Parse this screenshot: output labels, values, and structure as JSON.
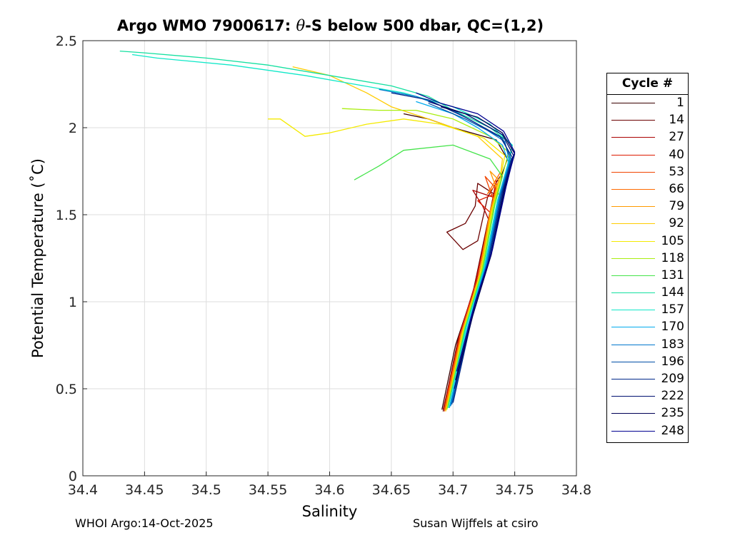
{
  "title": {
    "prefix": "Argo WMO 7900617: ",
    "theta": "θ",
    "suffix": "-S below 500 dbar,  QC=(1,2)"
  },
  "chart_data": {
    "type": "line",
    "title": "Argo WMO 7900617: θ-S below 500 dbar,  QC=(1,2)",
    "xlabel": "Salinity",
    "ylabel": "Potential Temperature (˚C)",
    "xlim": [
      34.4,
      34.8
    ],
    "ylim": [
      0,
      2.5
    ],
    "xticks": [
      "34.4",
      "34.45",
      "34.5",
      "34.55",
      "34.6",
      "34.65",
      "34.7",
      "34.75",
      "34.8"
    ],
    "yticks": [
      "0",
      "0.5",
      "1",
      "1.5",
      "2",
      "2.5"
    ],
    "xtick_values": [
      34.4,
      34.45,
      34.5,
      34.55,
      34.6,
      34.65,
      34.7,
      34.75,
      34.8
    ],
    "ytick_values": [
      0,
      0.5,
      1,
      1.5,
      2,
      2.5
    ],
    "grid": true,
    "legend_position": "right",
    "legend_title": "Cycle #",
    "series": [
      {
        "name": "1",
        "color": "#3a0000",
        "points": [
          [
            34.691,
            0.38
          ],
          [
            34.702,
            0.75
          ],
          [
            34.716,
            1.05
          ],
          [
            34.727,
            1.4
          ],
          [
            34.738,
            1.7
          ],
          [
            34.744,
            1.82
          ],
          [
            34.735,
            1.93
          ],
          [
            34.7,
            2.0
          ],
          [
            34.68,
            2.05
          ],
          [
            34.66,
            2.08
          ]
        ]
      },
      {
        "name": "14",
        "color": "#6a0000",
        "points": [
          [
            34.692,
            0.37
          ],
          [
            34.704,
            0.78
          ],
          [
            34.717,
            1.08
          ],
          [
            34.727,
            1.42
          ],
          [
            34.733,
            1.62
          ],
          [
            34.72,
            1.68
          ],
          [
            34.718,
            1.55
          ],
          [
            34.71,
            1.45
          ],
          [
            34.695,
            1.4
          ],
          [
            34.708,
            1.3
          ],
          [
            34.72,
            1.35
          ],
          [
            34.728,
            1.6
          ],
          [
            34.738,
            1.72
          ]
        ]
      },
      {
        "name": "27",
        "color": "#aa0000",
        "points": [
          [
            34.692,
            0.38
          ],
          [
            34.705,
            0.78
          ],
          [
            34.718,
            1.08
          ],
          [
            34.728,
            1.45
          ],
          [
            34.733,
            1.6
          ],
          [
            34.716,
            1.64
          ],
          [
            34.724,
            1.55
          ],
          [
            34.729,
            1.47
          ],
          [
            34.734,
            1.66
          ]
        ]
      },
      {
        "name": "40",
        "color": "#dd1a00",
        "points": [
          [
            34.693,
            0.38
          ],
          [
            34.705,
            0.8
          ],
          [
            34.718,
            1.1
          ],
          [
            34.728,
            1.42
          ],
          [
            34.734,
            1.62
          ],
          [
            34.72,
            1.58
          ],
          [
            34.732,
            1.5
          ],
          [
            34.735,
            1.7
          ]
        ]
      },
      {
        "name": "53",
        "color": "#f04400",
        "points": [
          [
            34.693,
            0.37
          ],
          [
            34.706,
            0.8
          ],
          [
            34.72,
            1.12
          ],
          [
            34.73,
            1.48
          ],
          [
            34.735,
            1.65
          ],
          [
            34.726,
            1.72
          ],
          [
            34.734,
            1.56
          ]
        ]
      },
      {
        "name": "66",
        "color": "#ff6a00",
        "points": [
          [
            34.693,
            0.38
          ],
          [
            34.706,
            0.8
          ],
          [
            34.72,
            1.12
          ],
          [
            34.73,
            1.5
          ],
          [
            34.736,
            1.68
          ],
          [
            34.728,
            1.62
          ],
          [
            34.738,
            1.74
          ]
        ]
      },
      {
        "name": "79",
        "color": "#ff9a00",
        "points": [
          [
            34.694,
            0.38
          ],
          [
            34.707,
            0.82
          ],
          [
            34.721,
            1.15
          ],
          [
            34.73,
            1.52
          ],
          [
            34.737,
            1.7
          ],
          [
            34.73,
            1.75
          ],
          [
            34.738,
            1.6
          ]
        ]
      },
      {
        "name": "92",
        "color": "#ffcc00",
        "points": [
          [
            34.694,
            0.37
          ],
          [
            34.708,
            0.82
          ],
          [
            34.722,
            1.15
          ],
          [
            34.731,
            1.52
          ],
          [
            34.738,
            1.7
          ],
          [
            34.74,
            1.82
          ],
          [
            34.72,
            1.95
          ],
          [
            34.68,
            2.05
          ],
          [
            34.65,
            2.12
          ],
          [
            34.63,
            2.2
          ],
          [
            34.6,
            2.3
          ],
          [
            34.57,
            2.35
          ]
        ]
      },
      {
        "name": "105",
        "color": "#f4ea00",
        "points": [
          [
            34.695,
            0.38
          ],
          [
            34.708,
            0.83
          ],
          [
            34.722,
            1.16
          ],
          [
            34.732,
            1.54
          ],
          [
            34.738,
            1.7
          ],
          [
            34.742,
            1.84
          ],
          [
            34.725,
            1.94
          ],
          [
            34.69,
            2.02
          ],
          [
            34.66,
            2.05
          ],
          [
            34.63,
            2.02
          ],
          [
            34.6,
            1.97
          ],
          [
            34.58,
            1.95
          ],
          [
            34.56,
            2.05
          ],
          [
            34.55,
            2.05
          ]
        ]
      },
      {
        "name": "118",
        "color": "#aaee10",
        "points": [
          [
            34.695,
            0.38
          ],
          [
            34.709,
            0.84
          ],
          [
            34.723,
            1.17
          ],
          [
            34.733,
            1.55
          ],
          [
            34.741,
            1.75
          ],
          [
            34.745,
            1.86
          ],
          [
            34.73,
            1.95
          ],
          [
            34.7,
            2.05
          ],
          [
            34.67,
            2.1
          ],
          [
            34.64,
            2.1
          ],
          [
            34.61,
            2.11
          ]
        ]
      },
      {
        "name": "131",
        "color": "#44e44a",
        "points": [
          [
            34.696,
            0.39
          ],
          [
            34.71,
            0.85
          ],
          [
            34.724,
            1.18
          ],
          [
            34.734,
            1.56
          ],
          [
            34.74,
            1.72
          ],
          [
            34.73,
            1.82
          ],
          [
            34.7,
            1.9
          ],
          [
            34.66,
            1.87
          ],
          [
            34.64,
            1.78
          ],
          [
            34.62,
            1.7
          ]
        ]
      },
      {
        "name": "144",
        "color": "#14e0a0",
        "points": [
          [
            34.696,
            0.39
          ],
          [
            34.71,
            0.85
          ],
          [
            34.725,
            1.18
          ],
          [
            34.736,
            1.58
          ],
          [
            34.744,
            1.78
          ],
          [
            34.748,
            1.9
          ],
          [
            34.73,
            2.0
          ],
          [
            34.7,
            2.1
          ],
          [
            34.68,
            2.18
          ],
          [
            34.65,
            2.24
          ],
          [
            34.6,
            2.3
          ],
          [
            34.55,
            2.36
          ],
          [
            34.5,
            2.4
          ],
          [
            34.45,
            2.43
          ],
          [
            34.43,
            2.44
          ]
        ]
      },
      {
        "name": "157",
        "color": "#10e8c8",
        "points": [
          [
            34.697,
            0.39
          ],
          [
            34.711,
            0.86
          ],
          [
            34.725,
            1.19
          ],
          [
            34.736,
            1.58
          ],
          [
            34.745,
            1.78
          ],
          [
            34.748,
            1.9
          ],
          [
            34.73,
            2.02
          ],
          [
            34.7,
            2.12
          ],
          [
            34.66,
            2.2
          ],
          [
            34.62,
            2.25
          ],
          [
            34.58,
            2.3
          ],
          [
            34.52,
            2.36
          ],
          [
            34.46,
            2.4
          ],
          [
            34.44,
            2.42
          ]
        ]
      },
      {
        "name": "170",
        "color": "#00aaee",
        "points": [
          [
            34.697,
            0.39
          ],
          [
            34.712,
            0.86
          ],
          [
            34.726,
            1.2
          ],
          [
            34.737,
            1.6
          ],
          [
            34.745,
            1.8
          ],
          [
            34.74,
            1.9
          ],
          [
            34.72,
            2.0
          ],
          [
            34.7,
            2.08
          ],
          [
            34.67,
            2.15
          ]
        ]
      },
      {
        "name": "183",
        "color": "#0077cc",
        "points": [
          [
            34.698,
            0.4
          ],
          [
            34.713,
            0.87
          ],
          [
            34.727,
            1.21
          ],
          [
            34.738,
            1.61
          ],
          [
            34.746,
            1.8
          ],
          [
            34.742,
            1.92
          ],
          [
            34.72,
            2.02
          ],
          [
            34.7,
            2.1
          ],
          [
            34.67,
            2.18
          ],
          [
            34.64,
            2.22
          ]
        ]
      },
      {
        "name": "196",
        "color": "#004fa6",
        "points": [
          [
            34.699,
            0.41
          ],
          [
            34.714,
            0.88
          ],
          [
            34.728,
            1.22
          ],
          [
            34.739,
            1.62
          ],
          [
            34.747,
            1.82
          ],
          [
            34.74,
            1.94
          ],
          [
            34.71,
            2.05
          ],
          [
            34.68,
            2.14
          ]
        ]
      },
      {
        "name": "209",
        "color": "#00288a",
        "points": [
          [
            34.7,
            0.42
          ],
          [
            34.715,
            0.9
          ],
          [
            34.729,
            1.24
          ],
          [
            34.74,
            1.63
          ],
          [
            34.748,
            1.83
          ],
          [
            34.738,
            1.95
          ],
          [
            34.71,
            2.06
          ],
          [
            34.68,
            2.16
          ],
          [
            34.65,
            2.2
          ]
        ]
      },
      {
        "name": "222",
        "color": "#001070",
        "points": [
          [
            34.701,
            0.5
          ],
          [
            34.716,
            0.92
          ],
          [
            34.73,
            1.25
          ],
          [
            34.741,
            1.64
          ],
          [
            34.749,
            1.84
          ],
          [
            34.74,
            1.96
          ],
          [
            34.71,
            2.08
          ],
          [
            34.68,
            2.15
          ]
        ]
      },
      {
        "name": "235",
        "color": "#000055",
        "points": [
          [
            34.702,
            0.55
          ],
          [
            34.717,
            0.95
          ],
          [
            34.731,
            1.27
          ],
          [
            34.742,
            1.65
          ],
          [
            34.75,
            1.85
          ],
          [
            34.74,
            1.97
          ],
          [
            34.72,
            2.06
          ],
          [
            34.69,
            2.12
          ]
        ]
      },
      {
        "name": "248",
        "color": "#000090",
        "points": [
          [
            34.703,
            0.6
          ],
          [
            34.718,
            1.0
          ],
          [
            34.732,
            1.3
          ],
          [
            34.743,
            1.66
          ],
          [
            34.75,
            1.86
          ],
          [
            34.741,
            1.98
          ],
          [
            34.72,
            2.08
          ],
          [
            34.69,
            2.14
          ],
          [
            34.67,
            2.2
          ]
        ]
      }
    ]
  },
  "footer": {
    "left": "WHOI Argo:14-Oct-2025",
    "right": "Susan Wijffels at csiro"
  }
}
